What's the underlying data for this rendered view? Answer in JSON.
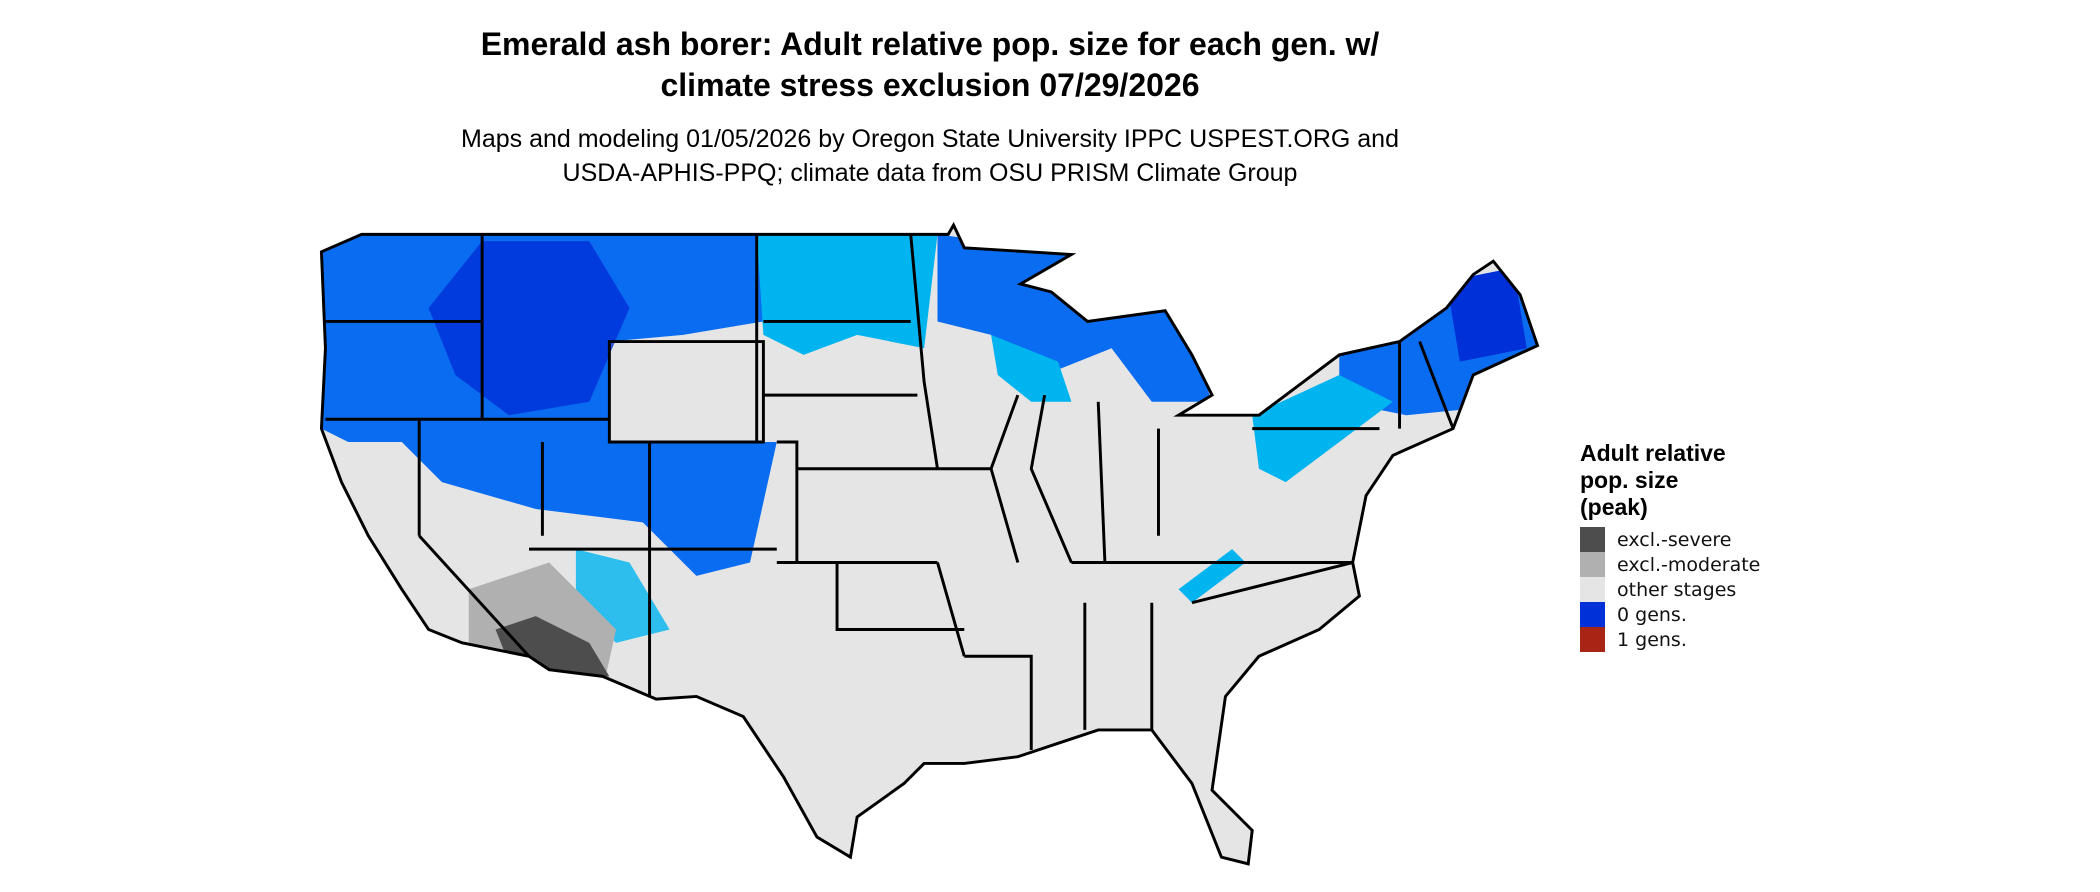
{
  "title": {
    "line1": "Emerald ash borer: Adult relative pop. size for each gen. w/",
    "line2": "climate stress exclusion 07/29/2026"
  },
  "subtitle": {
    "line1": "Maps and modeling 01/05/2026 by Oregon State University IPPC USPEST.ORG and",
    "line2": "USDA-APHIS-PPQ; climate data from OSU PRISM Climate Group"
  },
  "legend": {
    "title_lines": [
      "Adult relative",
      "pop. size",
      "(peak)"
    ],
    "items": [
      {
        "label": "excl.-severe",
        "color": "#4d4d4d"
      },
      {
        "label": "excl.-moderate",
        "color": "#b0b0b0"
      },
      {
        "label": "other stages",
        "color": "#e5e5e5"
      },
      {
        "label": "0 gens.",
        "color": "#0030d8"
      },
      {
        "label": "1 gens.",
        "color": "#a82515"
      }
    ]
  },
  "chart_data": {
    "type": "map",
    "region": "Contiguous United States",
    "colors": {
      "background_land": "#e5e5e5",
      "low_blue": "#00b4f0",
      "mid_blue": "#0a6cf0",
      "dark_blue": "#0030d8",
      "state_border": "#000000"
    },
    "categories": [
      "excl.-severe",
      "excl.-moderate",
      "other stages",
      "0 gens.",
      "1 gens."
    ]
  }
}
